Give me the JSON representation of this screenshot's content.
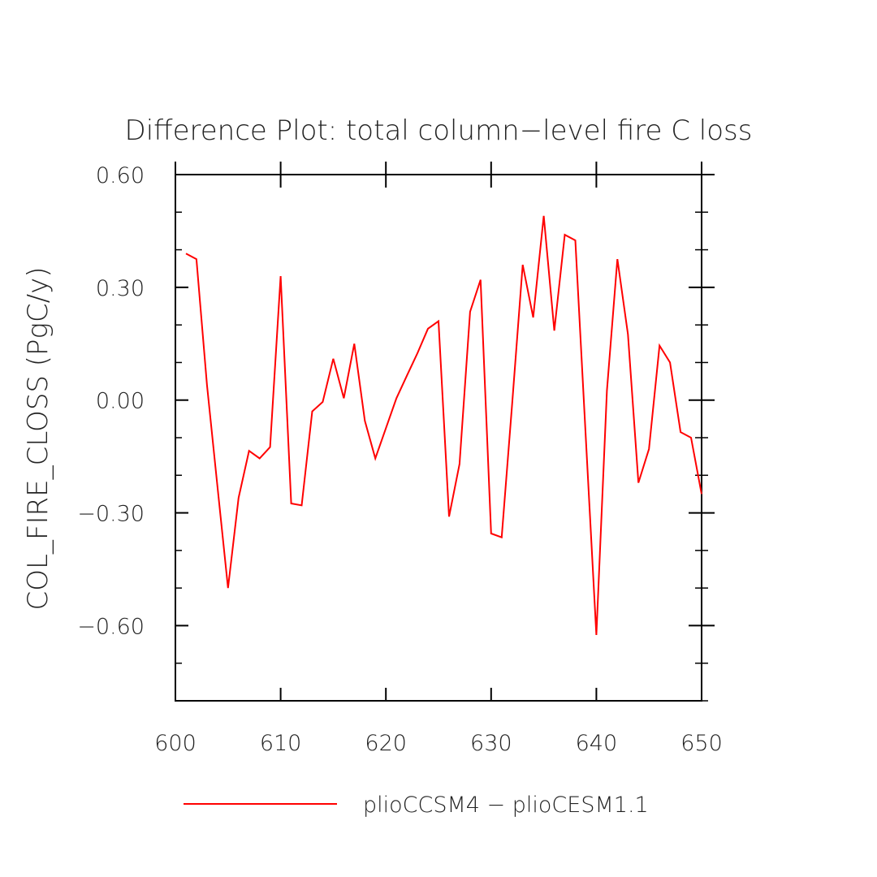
{
  "chart_data": {
    "type": "line",
    "title": "Difference Plot: total column−level fire C loss",
    "xlabel": "",
    "ylabel": "COL_FIRE_CLOSS  (PgC/y)",
    "xlim": [
      600,
      650
    ],
    "ylim": [
      -0.8,
      0.6
    ],
    "x_ticks": [
      600,
      610,
      620,
      630,
      640,
      650
    ],
    "x_tick_labels": [
      "600",
      "610",
      "620",
      "630",
      "640",
      "650"
    ],
    "y_ticks": [
      0.6,
      0.3,
      0.0,
      -0.3,
      -0.6
    ],
    "y_tick_labels": [
      "0.60",
      "0.30",
      "0.00",
      "−0.30",
      "−0.60"
    ],
    "y_minor_step": 0.1,
    "x_minor_step": 10,
    "grid": false,
    "legend_position": "bottom",
    "series": [
      {
        "name": "plioCCSM4 − plioCESM1.1",
        "color": "#ff0000",
        "x": [
          601,
          602,
          603,
          604,
          605,
          606,
          607,
          608,
          609,
          610,
          611,
          612,
          613,
          614,
          615,
          616,
          617,
          618,
          619,
          620,
          621,
          622,
          623,
          624,
          625,
          626,
          627,
          628,
          629,
          630,
          631,
          632,
          633,
          634,
          635,
          636,
          637,
          638,
          639,
          640,
          641,
          642,
          643,
          644,
          645,
          646,
          647,
          648,
          649,
          650
        ],
        "y": [
          0.39,
          0.375,
          0.04,
          -0.23,
          -0.5,
          -0.26,
          -0.135,
          -0.155,
          -0.125,
          0.33,
          -0.275,
          -0.28,
          -0.03,
          -0.005,
          0.11,
          0.005,
          0.15,
          -0.055,
          -0.155,
          -0.075,
          0.005,
          0.065,
          0.125,
          0.19,
          0.21,
          -0.31,
          -0.17,
          0.235,
          0.32,
          -0.355,
          -0.365,
          -0.01,
          0.36,
          0.22,
          0.49,
          0.185,
          0.44,
          0.425,
          -0.1,
          -0.625,
          0.025,
          0.375,
          0.175,
          -0.22,
          -0.13,
          0.145,
          0.1,
          -0.085,
          -0.1,
          -0.25
        ]
      }
    ]
  }
}
